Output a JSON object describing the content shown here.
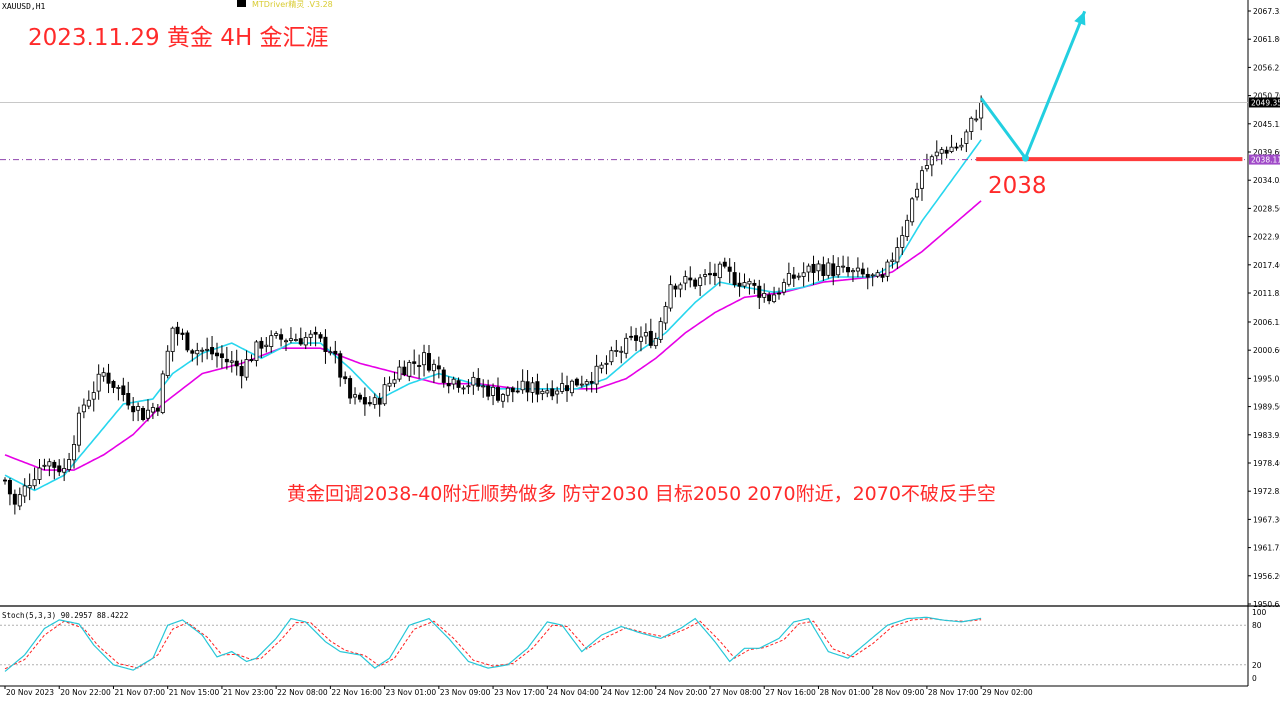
{
  "window": {
    "symbol_title": "XAUUSD,H1",
    "indicator_tag": "MTDriver精灵 .V3.28"
  },
  "annotations": {
    "title": "2023.11.29 黄金 4H 金汇涯",
    "level_label": "2038",
    "strategy": "黄金回调2038-40附近顺势做多 防守2030 目标2050 2070附近，2070不破反手空",
    "support_price": 2038.2,
    "support_from_bar": 197,
    "support_to_bar": 251,
    "arrow_path": [
      [
        198,
        2050.2
      ],
      [
        207,
        2038.4
      ],
      [
        219,
        2067.3
      ]
    ],
    "colors": {
      "title": "#ff2a2a",
      "support": "#ff3b3b",
      "arrow": "#22cfe0",
      "fast_ma": "#27d6ee",
      "slow_ma": "#e600e6",
      "stoch_main": "#27c7d8",
      "stoch_signal": "#ff2020"
    }
  },
  "price_tags": {
    "current": "2049.35",
    "line": "2038.11"
  },
  "chart_data": {
    "type": "candlestick",
    "title": "",
    "y_ticks": [
      "2067.35",
      "2061.80",
      "2056.25",
      "2050.70",
      "2045.15",
      "2039.60",
      "2034.05",
      "2028.50",
      "2022.95",
      "2017.40",
      "2011.85",
      "2006.15",
      "2000.60",
      "1995.05",
      "1989.50",
      "1983.95",
      "1978.40",
      "1972.85",
      "1967.30",
      "1961.75",
      "1956.20",
      "1950.65"
    ],
    "ylim": [
      1950.65,
      2067.35
    ],
    "x_ticks": [
      "20 Nov 2023",
      "20 Nov 22:00",
      "21 Nov 07:00",
      "21 Nov 15:00",
      "21 Nov 23:00",
      "22 Nov 08:00",
      "22 Nov 16:00",
      "23 Nov 01:00",
      "23 Nov 09:00",
      "23 Nov 17:00",
      "24 Nov 04:00",
      "24 Nov 12:00",
      "24 Nov 20:00",
      "27 Nov 08:00",
      "27 Nov 16:00",
      "28 Nov 01:00",
      "28 Nov 09:00",
      "28 Nov 17:00",
      "29 Nov 02:00"
    ],
    "x_tick_bars": [
      0,
      11,
      22,
      33,
      44,
      55,
      66,
      77,
      88,
      99,
      110,
      121,
      132,
      143,
      154,
      165,
      176,
      187,
      198
    ],
    "current_price": 2049.35,
    "horizontal_line": 2038.11,
    "anchors": [
      [
        0,
        1975
      ],
      [
        2,
        1970
      ],
      [
        5,
        1975
      ],
      [
        8,
        1979
      ],
      [
        12,
        1977
      ],
      [
        16,
        1990
      ],
      [
        20,
        1996
      ],
      [
        24,
        1992
      ],
      [
        28,
        1988
      ],
      [
        31,
        1990
      ],
      [
        34,
        2005
      ],
      [
        38,
        2001
      ],
      [
        42,
        2000
      ],
      [
        48,
        1997
      ],
      [
        52,
        2002
      ],
      [
        57,
        2003
      ],
      [
        62,
        2003
      ],
      [
        66,
        2001
      ],
      [
        70,
        1991
      ],
      [
        75,
        1990
      ],
      [
        80,
        1997
      ],
      [
        85,
        1999
      ],
      [
        90,
        1995
      ],
      [
        95,
        1994
      ],
      [
        100,
        1992
      ],
      [
        105,
        1993
      ],
      [
        110,
        1993
      ],
      [
        115,
        1994
      ],
      [
        120,
        1996
      ],
      [
        124,
        2000
      ],
      [
        128,
        2003
      ],
      [
        132,
        2003
      ],
      [
        135,
        2014
      ],
      [
        140,
        2014
      ],
      [
        145,
        2016
      ],
      [
        150,
        2014
      ],
      [
        155,
        2011
      ],
      [
        160,
        2015
      ],
      [
        165,
        2017
      ],
      [
        170,
        2016
      ],
      [
        175,
        2015
      ],
      [
        178,
        2014
      ],
      [
        182,
        2024
      ],
      [
        186,
        2036
      ],
      [
        190,
        2040
      ],
      [
        194,
        2041
      ],
      [
        198,
        2049.35
      ]
    ],
    "ma_fast_anchors": [
      [
        0,
        1976
      ],
      [
        6,
        1973
      ],
      [
        12,
        1976
      ],
      [
        18,
        1983
      ],
      [
        24,
        1990
      ],
      [
        30,
        1991
      ],
      [
        34,
        1996
      ],
      [
        40,
        2000
      ],
      [
        46,
        2002
      ],
      [
        52,
        1999
      ],
      [
        58,
        2002
      ],
      [
        64,
        2002
      ],
      [
        70,
        1997
      ],
      [
        76,
        1991
      ],
      [
        82,
        1994
      ],
      [
        88,
        1996
      ],
      [
        95,
        1994
      ],
      [
        100,
        1993
      ],
      [
        108,
        1993
      ],
      [
        116,
        1993
      ],
      [
        122,
        1995
      ],
      [
        128,
        2000
      ],
      [
        134,
        2004
      ],
      [
        140,
        2010
      ],
      [
        145,
        2014
      ],
      [
        150,
        2013
      ],
      [
        156,
        2012
      ],
      [
        162,
        2013
      ],
      [
        168,
        2015
      ],
      [
        176,
        2015
      ],
      [
        181,
        2018
      ],
      [
        186,
        2026
      ],
      [
        192,
        2034
      ],
      [
        198,
        2042
      ]
    ],
    "ma_slow_anchors": [
      [
        0,
        1980
      ],
      [
        8,
        1977
      ],
      [
        14,
        1977
      ],
      [
        20,
        1980
      ],
      [
        26,
        1984
      ],
      [
        32,
        1990
      ],
      [
        40,
        1996
      ],
      [
        48,
        1998
      ],
      [
        56,
        2001
      ],
      [
        64,
        2001
      ],
      [
        72,
        1998
      ],
      [
        80,
        1996
      ],
      [
        88,
        1994
      ],
      [
        96,
        1994
      ],
      [
        104,
        1993
      ],
      [
        114,
        1993
      ],
      [
        120,
        1993
      ],
      [
        126,
        1995
      ],
      [
        132,
        1999
      ],
      [
        138,
        2004
      ],
      [
        144,
        2008
      ],
      [
        150,
        2011
      ],
      [
        158,
        2012
      ],
      [
        166,
        2014
      ],
      [
        176,
        2015
      ],
      [
        180,
        2016
      ],
      [
        186,
        2020
      ],
      [
        192,
        2025
      ],
      [
        198,
        2030
      ]
    ],
    "stochastic": {
      "label": "Stoch(5,3,3) 90.2957 88.4222",
      "k": 90.2957,
      "d": 88.4222,
      "levels": [
        20,
        80
      ],
      "axis_labels": [
        "100",
        "80",
        "20",
        "0"
      ],
      "k_anchors": [
        [
          0,
          10
        ],
        [
          4,
          35
        ],
        [
          8,
          75
        ],
        [
          11,
          88
        ],
        [
          15,
          82
        ],
        [
          18,
          50
        ],
        [
          22,
          20
        ],
        [
          26,
          12
        ],
        [
          30,
          30
        ],
        [
          33,
          80
        ],
        [
          36,
          88
        ],
        [
          40,
          65
        ],
        [
          43,
          32
        ],
        [
          46,
          40
        ],
        [
          49,
          25
        ],
        [
          51,
          30
        ],
        [
          55,
          60
        ],
        [
          58,
          90
        ],
        [
          61,
          85
        ],
        [
          65,
          55
        ],
        [
          68,
          40
        ],
        [
          72,
          35
        ],
        [
          75,
          15
        ],
        [
          78,
          30
        ],
        [
          82,
          80
        ],
        [
          86,
          90
        ],
        [
          90,
          60
        ],
        [
          94,
          25
        ],
        [
          98,
          15
        ],
        [
          102,
          20
        ],
        [
          106,
          45
        ],
        [
          110,
          85
        ],
        [
          113,
          80
        ],
        [
          117,
          40
        ],
        [
          121,
          65
        ],
        [
          125,
          78
        ],
        [
          129,
          68
        ],
        [
          133,
          60
        ],
        [
          137,
          75
        ],
        [
          140,
          90
        ],
        [
          144,
          55
        ],
        [
          147,
          25
        ],
        [
          150,
          45
        ],
        [
          153,
          45
        ],
        [
          157,
          60
        ],
        [
          160,
          85
        ],
        [
          163,
          90
        ],
        [
          167,
          40
        ],
        [
          171,
          30
        ],
        [
          175,
          55
        ],
        [
          179,
          80
        ],
        [
          183,
          90
        ],
        [
          187,
          92
        ],
        [
          190,
          88
        ],
        [
          194,
          85
        ],
        [
          198,
          90.3
        ]
      ],
      "d_anchors": [
        [
          0,
          14
        ],
        [
          4,
          28
        ],
        [
          8,
          65
        ],
        [
          12,
          86
        ],
        [
          16,
          75
        ],
        [
          19,
          48
        ],
        [
          23,
          22
        ],
        [
          27,
          15
        ],
        [
          31,
          35
        ],
        [
          34,
          74
        ],
        [
          37,
          84
        ],
        [
          41,
          62
        ],
        [
          44,
          35
        ],
        [
          47,
          36
        ],
        [
          50,
          28
        ],
        [
          52,
          30
        ],
        [
          56,
          58
        ],
        [
          59,
          84
        ],
        [
          62,
          84
        ],
        [
          66,
          56
        ],
        [
          69,
          42
        ],
        [
          73,
          34
        ],
        [
          76,
          18
        ],
        [
          79,
          30
        ],
        [
          83,
          74
        ],
        [
          87,
          86
        ],
        [
          91,
          60
        ],
        [
          95,
          27
        ],
        [
          99,
          18
        ],
        [
          103,
          22
        ],
        [
          107,
          45
        ],
        [
          111,
          80
        ],
        [
          114,
          78
        ],
        [
          118,
          44
        ],
        [
          122,
          62
        ],
        [
          126,
          76
        ],
        [
          130,
          68
        ],
        [
          134,
          62
        ],
        [
          138,
          74
        ],
        [
          141,
          86
        ],
        [
          145,
          56
        ],
        [
          148,
          30
        ],
        [
          151,
          43
        ],
        [
          154,
          46
        ],
        [
          158,
          58
        ],
        [
          161,
          82
        ],
        [
          164,
          86
        ],
        [
          168,
          44
        ],
        [
          172,
          32
        ],
        [
          176,
          52
        ],
        [
          180,
          78
        ],
        [
          184,
          88
        ],
        [
          188,
          90
        ],
        [
          191,
          87
        ],
        [
          195,
          86
        ],
        [
          198,
          88.4
        ]
      ]
    }
  }
}
